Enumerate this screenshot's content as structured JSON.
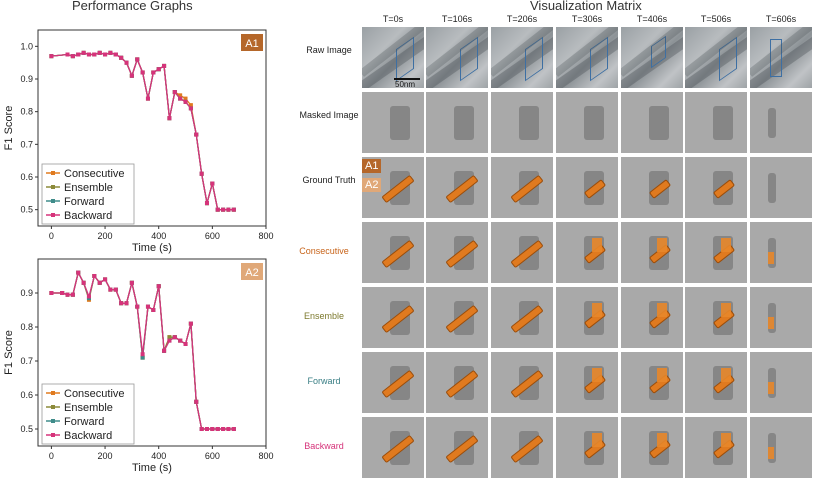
{
  "left_title": "Performance Graphs",
  "right_title": "Visualization Matrix",
  "colors": {
    "consecutive": "#e07a1f",
    "ensemble": "#8c8a3a",
    "forward": "#3f8c8a",
    "backward": "#d6337a",
    "tag_a1": "#b5672a",
    "tag_a2": "#e0a878"
  },
  "chart_data": [
    {
      "type": "line",
      "panel": "A1",
      "xlabel": "Time (s)",
      "ylabel": "F1 Score",
      "xlim": [
        -50,
        800
      ],
      "ylim": [
        0.45,
        1.05
      ],
      "xticks": [
        0,
        200,
        400,
        600,
        800
      ],
      "yticks": [
        0.5,
        0.6,
        0.7,
        0.8,
        0.9,
        1.0
      ],
      "ytick_labels": [
        "0.5",
        "0.6",
        "0.7",
        "0.8",
        "0.9",
        "1.0"
      ],
      "legend_position": "bottom-left",
      "x": [
        0,
        60,
        80,
        100,
        120,
        140,
        160,
        180,
        200,
        220,
        240,
        260,
        280,
        300,
        320,
        340,
        360,
        380,
        400,
        420,
        440,
        460,
        480,
        500,
        520,
        540,
        560,
        580,
        600,
        620,
        640,
        660,
        680
      ],
      "series": [
        {
          "name": "Consecutive",
          "color": "#e07a1f",
          "values": [
            0.97,
            0.975,
            0.97,
            0.975,
            0.98,
            0.975,
            0.975,
            0.98,
            0.975,
            0.98,
            0.975,
            0.965,
            0.95,
            0.91,
            0.96,
            0.92,
            0.84,
            0.92,
            0.93,
            0.94,
            0.78,
            0.86,
            0.85,
            0.84,
            0.82,
            0.73,
            0.61,
            0.52,
            0.58,
            0.5,
            0.5,
            0.5,
            0.5
          ]
        },
        {
          "name": "Ensemble",
          "color": "#8c8a3a",
          "values": [
            0.97,
            0.975,
            0.97,
            0.975,
            0.98,
            0.975,
            0.975,
            0.98,
            0.975,
            0.98,
            0.975,
            0.965,
            0.95,
            0.91,
            0.96,
            0.92,
            0.84,
            0.92,
            0.93,
            0.94,
            0.78,
            0.86,
            0.84,
            0.83,
            0.81,
            0.73,
            0.61,
            0.52,
            0.58,
            0.5,
            0.5,
            0.5,
            0.5
          ]
        },
        {
          "name": "Forward",
          "color": "#3f8c8a",
          "values": [
            0.97,
            0.975,
            0.97,
            0.975,
            0.98,
            0.975,
            0.975,
            0.98,
            0.975,
            0.98,
            0.975,
            0.965,
            0.95,
            0.91,
            0.96,
            0.92,
            0.84,
            0.92,
            0.93,
            0.94,
            0.78,
            0.86,
            0.84,
            0.83,
            0.81,
            0.73,
            0.61,
            0.52,
            0.58,
            0.5,
            0.5,
            0.5,
            0.5
          ]
        },
        {
          "name": "Backward",
          "color": "#d6337a",
          "values": [
            0.97,
            0.975,
            0.97,
            0.975,
            0.98,
            0.975,
            0.975,
            0.98,
            0.975,
            0.98,
            0.975,
            0.965,
            0.95,
            0.91,
            0.96,
            0.92,
            0.84,
            0.92,
            0.93,
            0.94,
            0.78,
            0.86,
            0.84,
            0.83,
            0.81,
            0.73,
            0.61,
            0.52,
            0.58,
            0.5,
            0.5,
            0.5,
            0.5
          ]
        }
      ]
    },
    {
      "type": "line",
      "panel": "A2",
      "xlabel": "Time (s)",
      "ylabel": "F1 Score",
      "xlim": [
        -50,
        800
      ],
      "ylim": [
        0.45,
        1.0
      ],
      "xticks": [
        0,
        200,
        400,
        600,
        800
      ],
      "yticks": [
        0.5,
        0.6,
        0.7,
        0.8,
        0.9
      ],
      "ytick_labels": [
        "0.5",
        "0.6",
        "0.7",
        "0.8",
        "0.9"
      ],
      "legend_position": "bottom-left",
      "x": [
        0,
        40,
        60,
        80,
        100,
        120,
        140,
        160,
        180,
        200,
        220,
        240,
        260,
        280,
        300,
        320,
        340,
        360,
        380,
        400,
        420,
        440,
        460,
        480,
        500,
        520,
        540,
        560,
        580,
        600,
        620,
        640,
        660,
        680
      ],
      "series": [
        {
          "name": "Consecutive",
          "color": "#e07a1f",
          "values": [
            0.9,
            0.9,
            0.895,
            0.895,
            0.96,
            0.93,
            0.88,
            0.95,
            0.93,
            0.94,
            0.91,
            0.91,
            0.87,
            0.87,
            0.93,
            0.86,
            0.71,
            0.86,
            0.85,
            0.92,
            0.73,
            0.77,
            0.77,
            0.76,
            0.75,
            0.81,
            0.58,
            0.5,
            0.5,
            0.5,
            0.5,
            0.5,
            0.5,
            0.5
          ]
        },
        {
          "name": "Ensemble",
          "color": "#8c8a3a",
          "values": [
            0.9,
            0.9,
            0.895,
            0.895,
            0.96,
            0.93,
            0.885,
            0.95,
            0.93,
            0.94,
            0.91,
            0.91,
            0.87,
            0.87,
            0.93,
            0.86,
            0.71,
            0.86,
            0.85,
            0.92,
            0.73,
            0.77,
            0.77,
            0.76,
            0.75,
            0.81,
            0.58,
            0.5,
            0.5,
            0.5,
            0.5,
            0.5,
            0.5,
            0.5
          ]
        },
        {
          "name": "Forward",
          "color": "#3f8c8a",
          "values": [
            0.9,
            0.9,
            0.895,
            0.895,
            0.96,
            0.93,
            0.885,
            0.95,
            0.93,
            0.94,
            0.91,
            0.91,
            0.87,
            0.87,
            0.93,
            0.86,
            0.71,
            0.86,
            0.85,
            0.92,
            0.73,
            0.76,
            0.77,
            0.76,
            0.75,
            0.81,
            0.58,
            0.5,
            0.5,
            0.5,
            0.5,
            0.5,
            0.5,
            0.5
          ]
        },
        {
          "name": "Backward",
          "color": "#d6337a",
          "values": [
            0.9,
            0.9,
            0.895,
            0.895,
            0.96,
            0.93,
            0.89,
            0.95,
            0.93,
            0.94,
            0.91,
            0.91,
            0.87,
            0.87,
            0.93,
            0.86,
            0.72,
            0.86,
            0.85,
            0.92,
            0.73,
            0.76,
            0.77,
            0.76,
            0.75,
            0.81,
            0.58,
            0.5,
            0.5,
            0.5,
            0.5,
            0.5,
            0.5,
            0.5
          ]
        }
      ]
    }
  ],
  "matrix": {
    "columns": [
      "T=0s",
      "T=106s",
      "T=206s",
      "T=306s",
      "T=406s",
      "T=506s",
      "T=606s"
    ],
    "rows": [
      {
        "label": "Raw Image",
        "color": "#222222"
      },
      {
        "label": "Masked Image",
        "color": "#222222"
      },
      {
        "label": "Ground Truth",
        "color": "#222222"
      },
      {
        "label": "Consecutive",
        "color": "#c8641a"
      },
      {
        "label": "Ensemble",
        "color": "#7d7a2e"
      },
      {
        "label": "Forward",
        "color": "#3a7f85"
      },
      {
        "label": "Backward",
        "color": "#d6337a"
      }
    ],
    "tags": [
      "A1",
      "A2"
    ],
    "scale_label": "50nm"
  }
}
